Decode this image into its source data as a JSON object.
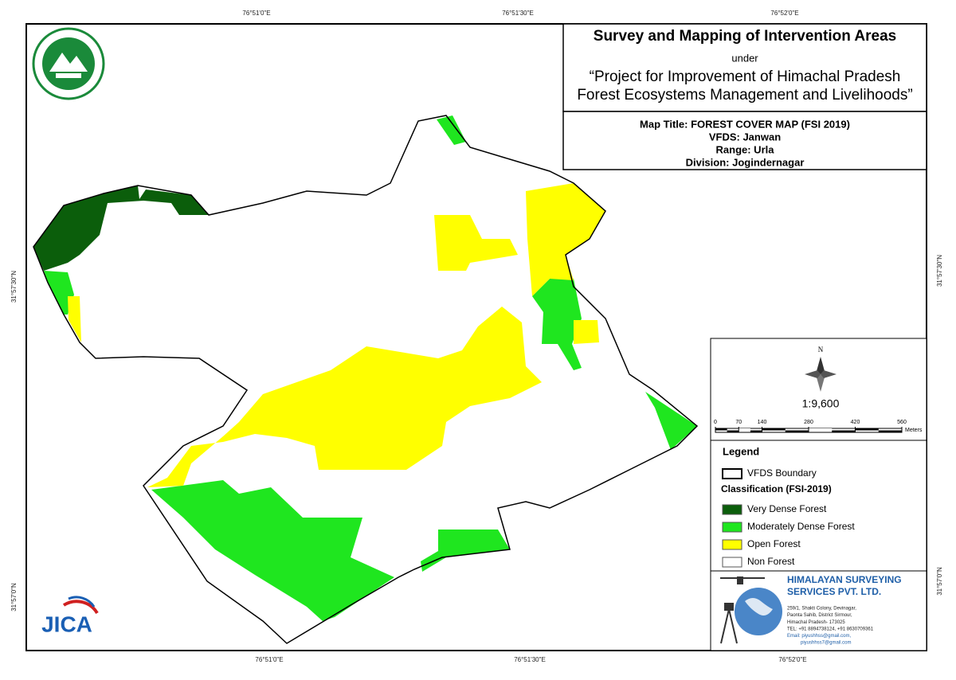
{
  "coordinates": {
    "top": [
      "76°51'0\"E",
      "76°51'30\"E",
      "76°52'0\"E"
    ],
    "bottom": [
      "76°51'0\"E",
      "76°51'30\"E",
      "76°52'0\"E"
    ],
    "left": [
      "31°57'30\"N",
      "31°57'0\"N"
    ],
    "right": [
      "31°57'30\"N",
      "31°57'0\"N"
    ]
  },
  "title_box": {
    "title": "Survey and Mapping of Intervention Areas",
    "under": "under",
    "project_lines": [
      "“Project for Improvement of Himachal Pradesh",
      "Forest Ecosystems Management and Livelihoods”"
    ]
  },
  "map_info": [
    "Map Title: FOREST COVER MAP (FSI 2019)",
    "VFDS: Janwan",
    "Range: Urla",
    "Division: Jogindernagar"
  ],
  "north": "N",
  "scale": "1:9,600",
  "scale_bar": {
    "ticks": [
      0,
      70,
      140,
      280,
      420,
      560
    ],
    "unit": "Meters"
  },
  "legend": {
    "title": "Legend",
    "boundary": "VFDS Boundary",
    "classification_title": "Classification (FSI-2019)",
    "items": [
      {
        "label": "Very Dense Forest",
        "color": "#0b5e0b"
      },
      {
        "label": "Moderately Dense Forest",
        "color": "#1fe61f"
      },
      {
        "label": "Open Forest",
        "color": "#ffff00"
      },
      {
        "label": "Non Forest",
        "color": "#ffffff"
      }
    ]
  },
  "company": {
    "name_lines": [
      "HIMALAYAN SURVEYING",
      "SERVICES PVT. LTD."
    ],
    "address_lines": [
      "259/1, Shakti Colony, Devinagar,",
      "Paonta Sahib, District Sirmour,",
      "Himachal Pradesh- 173025",
      "TEL: +91 8894738124, +91 8630709361",
      "Email: piyushhss@gmail.com,",
      "piyushhss7@gmail.com"
    ]
  },
  "jica": "JICA"
}
